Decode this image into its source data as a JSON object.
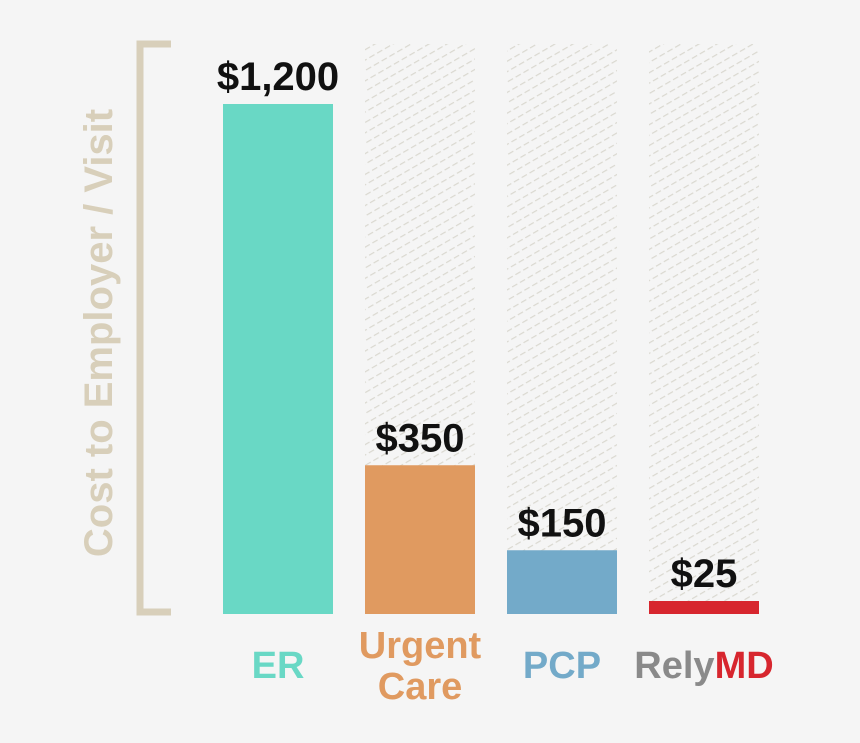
{
  "chart_data": {
    "type": "bar",
    "ylabel": "Cost to Employer / Visit",
    "ylim": [
      0,
      1300
    ],
    "grid": false,
    "legend": "none",
    "categories": [
      {
        "label": "ER",
        "label_lines": [
          "ER"
        ],
        "value": 1200,
        "display": "$1,200",
        "color": "#69d8c5"
      },
      {
        "label": "Urgent Care",
        "label_lines": [
          "Urgent",
          "Care"
        ],
        "value": 350,
        "display": "$350",
        "color": "#e09a60"
      },
      {
        "label": "PCP",
        "label_lines": [
          "PCP"
        ],
        "value": 150,
        "display": "$150",
        "color": "#73aac9"
      },
      {
        "label": "RelyMD",
        "label_parts": [
          {
            "text": "Rely",
            "color": "#8a8a8a"
          },
          {
            "text": "MD",
            "color": "#d7262e"
          }
        ],
        "value": 25,
        "display": "$25",
        "color": "#d7262e"
      }
    ],
    "colors": {
      "axis_bracket": "#d8cfba",
      "ylabel": "#d8cfba",
      "hatch": "#dad8d0",
      "value_text": "#111111"
    }
  }
}
